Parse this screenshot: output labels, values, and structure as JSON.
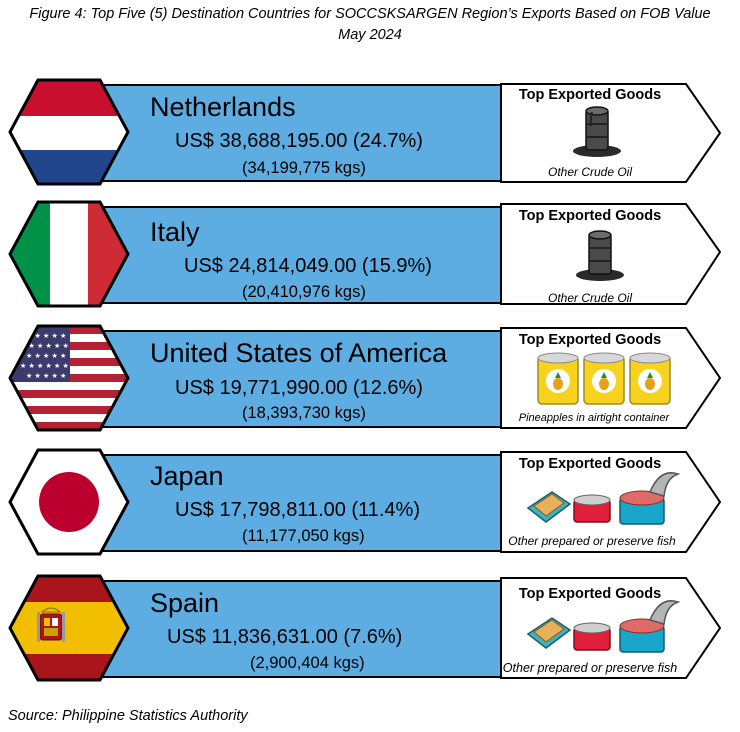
{
  "figure": {
    "title_line1": "Figure 4: Top Five (5) Destination Countries for SOCCSKSARGEN Region’s Exports Based on FOB Value",
    "title_line2": "May 2024"
  },
  "countries": [
    {
      "name": "Netherlands",
      "fob": "US$ 38,688,195.00 (24.7%)",
      "kgs": "(34,199,775 kgs)",
      "flag_icon": "netherlands-flag-icon",
      "goods_title": "Top Exported Goods",
      "goods_item": "Other Crude Oil",
      "goods_icon": "oil-barrel-icon"
    },
    {
      "name": "Italy",
      "fob": "US$ 24,814,049.00 (15.9%)",
      "kgs": "(20,410,976 kgs)",
      "flag_icon": "italy-flag-icon",
      "goods_title": "Top Exported Goods",
      "goods_item": "Other Crude Oil",
      "goods_icon": "oil-barrel-icon"
    },
    {
      "name": "United States of America",
      "fob": "US$ 19,771,990.00 (12.6%)",
      "kgs": "(18,393,730 kgs)",
      "flag_icon": "usa-flag-icon",
      "goods_title": "Top Exported Goods",
      "goods_item": "Pineapples in airtight container",
      "goods_icon": "pineapple-can-icon"
    },
    {
      "name": "Japan",
      "fob": "US$ 17,798,811.00 (11.4%)",
      "kgs": "(11,177,050 kgs)",
      "flag_icon": "japan-flag-icon",
      "goods_title": "Top Exported Goods",
      "goods_item": "Other prepared or preserve fish",
      "goods_icon": "canned-fish-icon"
    },
    {
      "name": "Spain",
      "fob": "US$ 11,836,631.00 (7.6%)",
      "kgs": "(2,900,404 kgs)",
      "flag_icon": "spain-flag-icon",
      "goods_title": "Top Exported Goods",
      "goods_item": "Other prepared or preserve fish",
      "goods_icon": "canned-fish-icon"
    }
  ],
  "source": "Source: Philippine Statistics Authority",
  "colors": {
    "bar": "#5DADE2",
    "netherlands_red": "#C8102E",
    "netherlands_blue": "#21468B",
    "italy_green": "#009246",
    "italy_red": "#CE2B37",
    "usa_red": "#B22234",
    "usa_blue": "#3C3B6E",
    "japan_red": "#BC002D",
    "spain_red": "#AA151B",
    "spain_yellow": "#F1BF00"
  }
}
